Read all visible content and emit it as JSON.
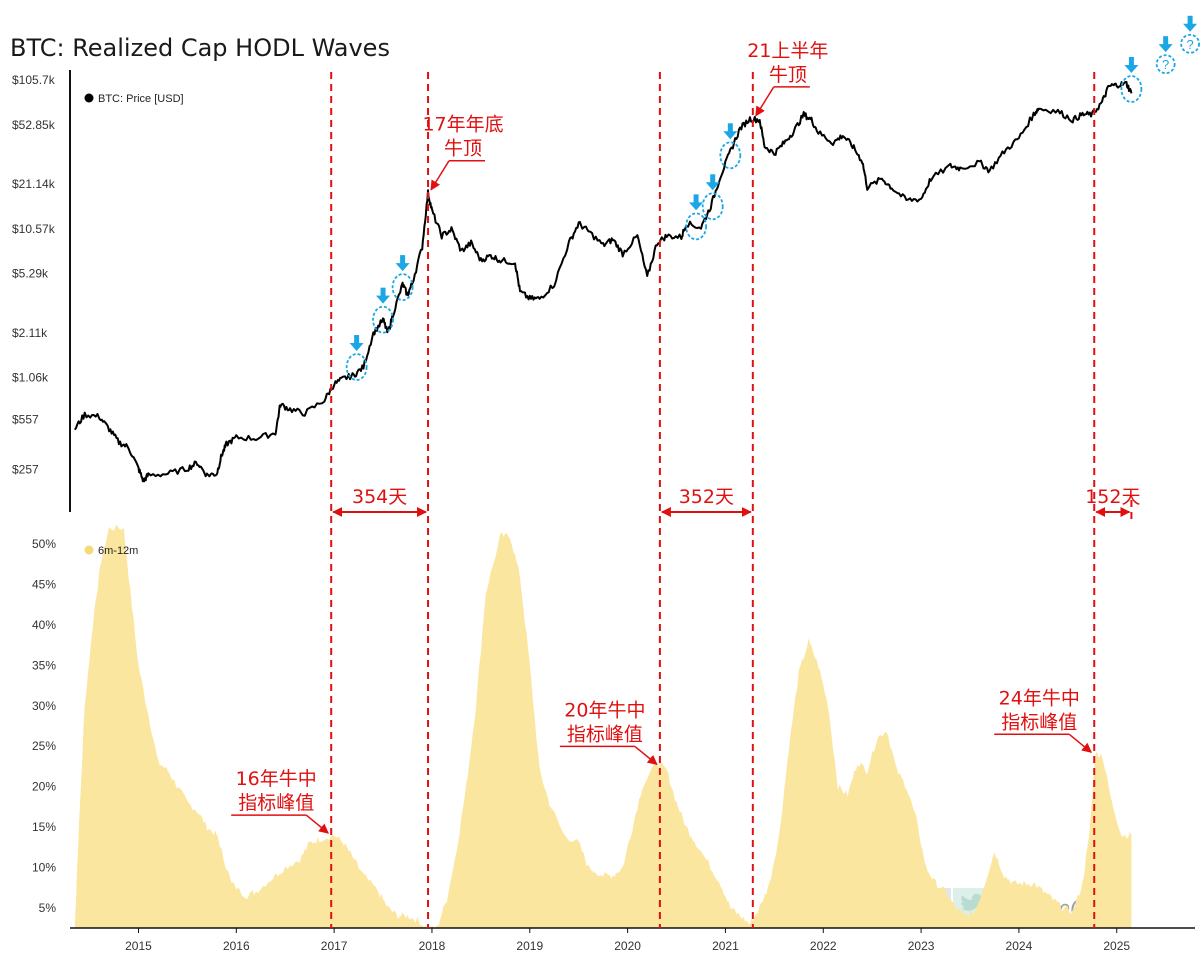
{
  "title": "BTC: Realized Cap HODL Waves",
  "watermark": {
    "text": "CryptoChan",
    "icons": [
      "x-logo-icon",
      "twitter-bird-icon"
    ]
  },
  "chart_data": [
    {
      "type": "line",
      "title": "BTC: Realized Cap HODL Waves",
      "scale": "log",
      "ylim": [
        160,
        105700
      ],
      "y_ticks": [
        {
          "value": 105700,
          "label": "$105.7k"
        },
        {
          "value": 52850,
          "label": "$52.85k"
        },
        {
          "value": 21140,
          "label": "$21.14k"
        },
        {
          "value": 10570,
          "label": "$10.57k"
        },
        {
          "value": 5290,
          "label": "$5.29k"
        },
        {
          "value": 2110,
          "label": "$2.11k"
        },
        {
          "value": 1060,
          "label": "$1.06k"
        },
        {
          "value": 557,
          "label": "$557"
        },
        {
          "value": 257,
          "label": "$257"
        }
      ],
      "series": [
        {
          "name": "BTC: Price [USD]",
          "color": "#000000",
          "points": [
            [
              2014.35,
              480
            ],
            [
              2014.45,
              600
            ],
            [
              2014.6,
              580
            ],
            [
              2014.7,
              480
            ],
            [
              2014.8,
              390
            ],
            [
              2014.9,
              360
            ],
            [
              2015.0,
              260
            ],
            [
              2015.05,
              215
            ],
            [
              2015.1,
              235
            ],
            [
              2015.3,
              240
            ],
            [
              2015.5,
              260
            ],
            [
              2015.6,
              285
            ],
            [
              2015.7,
              235
            ],
            [
              2015.8,
              240
            ],
            [
              2015.85,
              320
            ],
            [
              2015.9,
              380
            ],
            [
              2016.0,
              420
            ],
            [
              2016.2,
              415
            ],
            [
              2016.4,
              450
            ],
            [
              2016.45,
              700
            ],
            [
              2016.55,
              650
            ],
            [
              2016.7,
              610
            ],
            [
              2016.9,
              750
            ],
            [
              2017.0,
              960
            ],
            [
              2017.1,
              1050
            ],
            [
              2017.2,
              1100
            ],
            [
              2017.3,
              1250
            ],
            [
              2017.4,
              2100
            ],
            [
              2017.5,
              2600
            ],
            [
              2017.55,
              2100
            ],
            [
              2017.6,
              2800
            ],
            [
              2017.7,
              4500
            ],
            [
              2017.75,
              3800
            ],
            [
              2017.8,
              4600
            ],
            [
              2017.9,
              8000
            ],
            [
              2017.96,
              18500
            ],
            [
              2018.0,
              14000
            ],
            [
              2018.1,
              9500
            ],
            [
              2018.2,
              10500
            ],
            [
              2018.3,
              7500
            ],
            [
              2018.4,
              8500
            ],
            [
              2018.5,
              6500
            ],
            [
              2018.6,
              7000
            ],
            [
              2018.7,
              6500
            ],
            [
              2018.85,
              6300
            ],
            [
              2018.9,
              4000
            ],
            [
              2019.0,
              3600
            ],
            [
              2019.1,
              3600
            ],
            [
              2019.25,
              4500
            ],
            [
              2019.4,
              8500
            ],
            [
              2019.5,
              11500
            ],
            [
              2019.6,
              10200
            ],
            [
              2019.75,
              8200
            ],
            [
              2019.85,
              9000
            ],
            [
              2019.95,
              7200
            ],
            [
              2020.1,
              9500
            ],
            [
              2020.2,
              5000
            ],
            [
              2020.3,
              8500
            ],
            [
              2020.4,
              9500
            ],
            [
              2020.55,
              9300
            ],
            [
              2020.6,
              11500
            ],
            [
              2020.75,
              10800
            ],
            [
              2020.85,
              15000
            ],
            [
              2020.95,
              24000
            ],
            [
              2021.05,
              35000
            ],
            [
              2021.15,
              50000
            ],
            [
              2021.25,
              58000
            ],
            [
              2021.35,
              57000
            ],
            [
              2021.4,
              38000
            ],
            [
              2021.5,
              34000
            ],
            [
              2021.6,
              40000
            ],
            [
              2021.7,
              48000
            ],
            [
              2021.8,
              62000
            ],
            [
              2021.88,
              57000
            ],
            [
              2021.95,
              47000
            ],
            [
              2022.1,
              40000
            ],
            [
              2022.2,
              45000
            ],
            [
              2022.3,
              38000
            ],
            [
              2022.4,
              30000
            ],
            [
              2022.45,
              20000
            ],
            [
              2022.6,
              23000
            ],
            [
              2022.7,
              20000
            ],
            [
              2022.85,
              16500
            ],
            [
              2023.0,
              16800
            ],
            [
              2023.1,
              23000
            ],
            [
              2023.3,
              28000
            ],
            [
              2023.4,
              27000
            ],
            [
              2023.6,
              29500
            ],
            [
              2023.7,
              26000
            ],
            [
              2023.85,
              35000
            ],
            [
              2024.0,
              43000
            ],
            [
              2024.15,
              62000
            ],
            [
              2024.2,
              68000
            ],
            [
              2024.4,
              65000
            ],
            [
              2024.55,
              57000
            ],
            [
              2024.65,
              62000
            ],
            [
              2024.75,
              62000
            ],
            [
              2024.85,
              75000
            ],
            [
              2024.92,
              96000
            ],
            [
              2025.0,
              98000
            ],
            [
              2025.1,
              100000
            ],
            [
              2025.15,
              86000
            ]
          ]
        }
      ],
      "legend": {
        "label": "BTC: Price [USD]",
        "position": "top-left"
      }
    },
    {
      "type": "area",
      "ylim": [
        2.5,
        53
      ],
      "y_ticks": [
        {
          "value": 50,
          "label": "50%"
        },
        {
          "value": 45,
          "label": "45%"
        },
        {
          "value": 40,
          "label": "40%"
        },
        {
          "value": 35,
          "label": "35%"
        },
        {
          "value": 30,
          "label": "30%"
        },
        {
          "value": 25,
          "label": "25%"
        },
        {
          "value": 20,
          "label": "20%"
        },
        {
          "value": 15,
          "label": "15%"
        },
        {
          "value": 10,
          "label": "10%"
        },
        {
          "value": 5,
          "label": "5%"
        }
      ],
      "series": [
        {
          "name": "6m-12m",
          "color": "#fbe6a0",
          "points": [
            [
              2014.35,
              3
            ],
            [
              2014.38,
              12
            ],
            [
              2014.45,
              30
            ],
            [
              2014.55,
              42
            ],
            [
              2014.62,
              48
            ],
            [
              2014.7,
              52
            ],
            [
              2014.85,
              52
            ],
            [
              2014.9,
              46
            ],
            [
              2015.0,
              35
            ],
            [
              2015.1,
              29
            ],
            [
              2015.2,
              23
            ],
            [
              2015.3,
              22
            ],
            [
              2015.4,
              20
            ],
            [
              2015.5,
              18
            ],
            [
              2015.6,
              17
            ],
            [
              2015.7,
              15
            ],
            [
              2015.8,
              14
            ],
            [
              2015.85,
              12
            ],
            [
              2015.95,
              8
            ],
            [
              2016.1,
              6.5
            ],
            [
              2016.2,
              7
            ],
            [
              2016.35,
              8.5
            ],
            [
              2016.5,
              10
            ],
            [
              2016.65,
              11
            ],
            [
              2016.75,
              13
            ],
            [
              2016.85,
              13.5
            ],
            [
              2017.0,
              14
            ],
            [
              2017.1,
              13
            ],
            [
              2017.2,
              11
            ],
            [
              2017.3,
              9
            ],
            [
              2017.45,
              7
            ],
            [
              2017.55,
              5
            ],
            [
              2017.65,
              4
            ],
            [
              2017.75,
              4
            ],
            [
              2017.85,
              3.5
            ],
            [
              2017.95,
              2.5
            ],
            [
              2018.05,
              2.5
            ],
            [
              2018.15,
              6
            ],
            [
              2018.25,
              12
            ],
            [
              2018.35,
              20
            ],
            [
              2018.45,
              30
            ],
            [
              2018.55,
              44
            ],
            [
              2018.7,
              51
            ],
            [
              2018.8,
              51
            ],
            [
              2018.9,
              46
            ],
            [
              2019.0,
              35
            ],
            [
              2019.1,
              22
            ],
            [
              2019.2,
              18
            ],
            [
              2019.35,
              14
            ],
            [
              2019.5,
              13
            ],
            [
              2019.6,
              10
            ],
            [
              2019.75,
              9
            ],
            [
              2019.85,
              9
            ],
            [
              2019.95,
              10
            ],
            [
              2020.05,
              15
            ],
            [
              2020.15,
              20
            ],
            [
              2020.3,
              23
            ],
            [
              2020.4,
              22
            ],
            [
              2020.5,
              18
            ],
            [
              2020.6,
              15
            ],
            [
              2020.7,
              13
            ],
            [
              2020.85,
              10
            ],
            [
              2020.95,
              8
            ],
            [
              2021.05,
              5
            ],
            [
              2021.15,
              4
            ],
            [
              2021.25,
              3
            ],
            [
              2021.35,
              5
            ],
            [
              2021.45,
              8
            ],
            [
              2021.55,
              14
            ],
            [
              2021.65,
              25
            ],
            [
              2021.75,
              34
            ],
            [
              2021.85,
              38
            ],
            [
              2021.95,
              35
            ],
            [
              2022.05,
              30
            ],
            [
              2022.15,
              20
            ],
            [
              2022.25,
              19
            ],
            [
              2022.35,
              23
            ],
            [
              2022.45,
              22
            ],
            [
              2022.55,
              26
            ],
            [
              2022.65,
              27
            ],
            [
              2022.75,
              22
            ],
            [
              2022.85,
              20
            ],
            [
              2022.95,
              16
            ],
            [
              2023.05,
              10
            ],
            [
              2023.15,
              8
            ],
            [
              2023.25,
              7
            ],
            [
              2023.35,
              5
            ],
            [
              2023.45,
              4
            ],
            [
              2023.55,
              4.5
            ],
            [
              2023.65,
              8
            ],
            [
              2023.75,
              12
            ],
            [
              2023.85,
              9
            ],
            [
              2023.95,
              8
            ],
            [
              2024.05,
              8
            ],
            [
              2024.15,
              8
            ],
            [
              2024.25,
              7
            ],
            [
              2024.35,
              6
            ],
            [
              2024.45,
              5
            ],
            [
              2024.55,
              4.5
            ],
            [
              2024.65,
              8
            ],
            [
              2024.72,
              14
            ],
            [
              2024.78,
              24
            ],
            [
              2024.85,
              24
            ],
            [
              2024.95,
              18
            ],
            [
              2025.05,
              14
            ],
            [
              2025.15,
              14
            ]
          ]
        }
      ],
      "legend": {
        "label": "6m-12m",
        "position": "top-left"
      }
    }
  ],
  "x_axis": {
    "xlim": [
      2014.3,
      2025.8
    ],
    "ticks": [
      {
        "value": 2015,
        "label": "2015"
      },
      {
        "value": 2016,
        "label": "2016"
      },
      {
        "value": 2017,
        "label": "2017"
      },
      {
        "value": 2018,
        "label": "2018"
      },
      {
        "value": 2019,
        "label": "2019"
      },
      {
        "value": 2020,
        "label": "2020"
      },
      {
        "value": 2021,
        "label": "2021"
      },
      {
        "value": 2022,
        "label": "2022"
      },
      {
        "value": 2023,
        "label": "2023"
      },
      {
        "value": 2024,
        "label": "2024"
      },
      {
        "value": 2025,
        "label": "2025"
      }
    ]
  },
  "annotations": {
    "vlines_color": "#e01010",
    "vlines": [
      2016.97,
      2017.96,
      2020.33,
      2021.28,
      2024.77,
      2025.15
    ],
    "intervals": [
      {
        "label": "354天",
        "x1": 2016.97,
        "x2": 2017.96
      },
      {
        "label": "352天",
        "x1": 2020.33,
        "x2": 2021.28
      },
      {
        "label": "152天",
        "x1": 2024.77,
        "x2": 2025.15
      }
    ],
    "peaks_top": [
      {
        "line1": "17年年底",
        "line2": "牛顶",
        "x": 2017.96,
        "y": 18500
      },
      {
        "line1": "21上半年",
        "line2": "牛顶",
        "x": 2021.28,
        "y": 58000
      }
    ],
    "peaks_bottom": [
      {
        "line1": "16年牛中",
        "line2": "指标峰值",
        "x": 2016.97,
        "y": 14
      },
      {
        "line1": "20年牛中",
        "line2": "指标峰值",
        "x": 2020.33,
        "y": 22.5
      },
      {
        "line1": "24年牛中",
        "line2": "指标峰值",
        "x": 2024.77,
        "y": 24
      }
    ],
    "markers_color": "#1ba7e6",
    "markers": [
      {
        "x": 2017.23,
        "y": 1250
      },
      {
        "x": 2017.5,
        "y": 2600
      },
      {
        "x": 2017.7,
        "y": 4300
      },
      {
        "x": 2020.7,
        "y": 11000
      },
      {
        "x": 2020.87,
        "y": 15000
      },
      {
        "x": 2021.05,
        "y": 33000
      },
      {
        "x": 2025.15,
        "y": 92000
      }
    ],
    "question_markers": [
      {
        "label": "?",
        "x": 2025.5,
        "y": 135000
      },
      {
        "label": "?",
        "x": 2025.75,
        "y": 185000
      }
    ]
  }
}
